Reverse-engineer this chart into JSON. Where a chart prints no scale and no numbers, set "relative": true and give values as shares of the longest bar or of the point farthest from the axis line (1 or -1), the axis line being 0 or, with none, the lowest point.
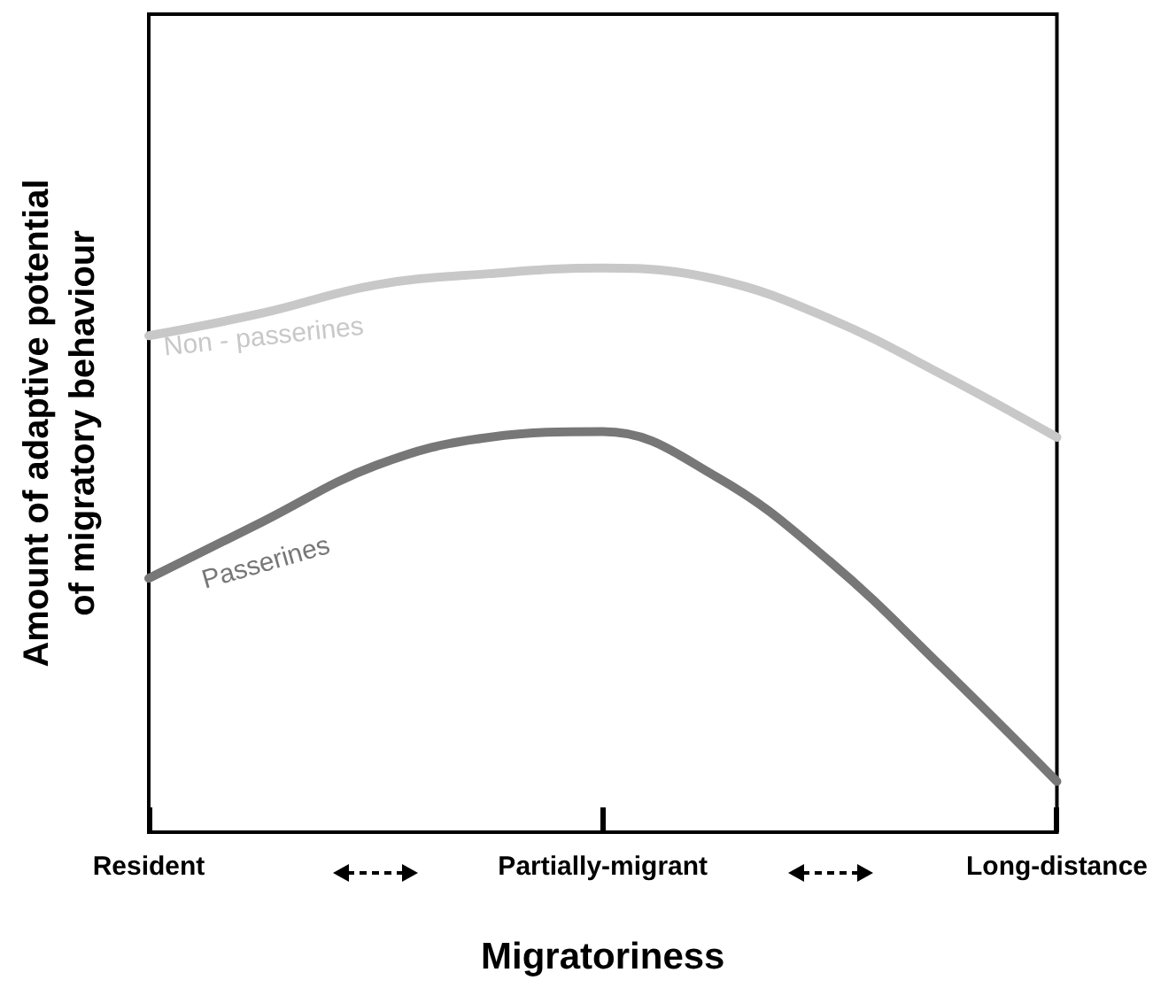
{
  "chart_data": {
    "type": "line",
    "relative": true,
    "xlabel": "Migratoriness",
    "ylabel": "Amount of adaptive potential of migratory behaviour",
    "categories": [
      "Resident",
      null,
      null,
      null,
      "Partially-migrant",
      null,
      null,
      null,
      "Long-distance"
    ],
    "series": [
      {
        "name": "Non - passerines",
        "color": "#c8c8c8",
        "values": [
          0.88,
          0.92,
          0.97,
          0.99,
          1.0,
          0.98,
          0.91,
          0.81,
          0.7
        ]
      },
      {
        "name": "Passerines",
        "color": "#777777",
        "values": [
          0.45,
          0.55,
          0.65,
          0.7,
          0.71,
          0.63,
          0.48,
          0.29,
          0.09
        ]
      }
    ],
    "legend": false,
    "grid": false,
    "tick_labels": "x",
    "marker": "none",
    "line_style": "solid"
  }
}
